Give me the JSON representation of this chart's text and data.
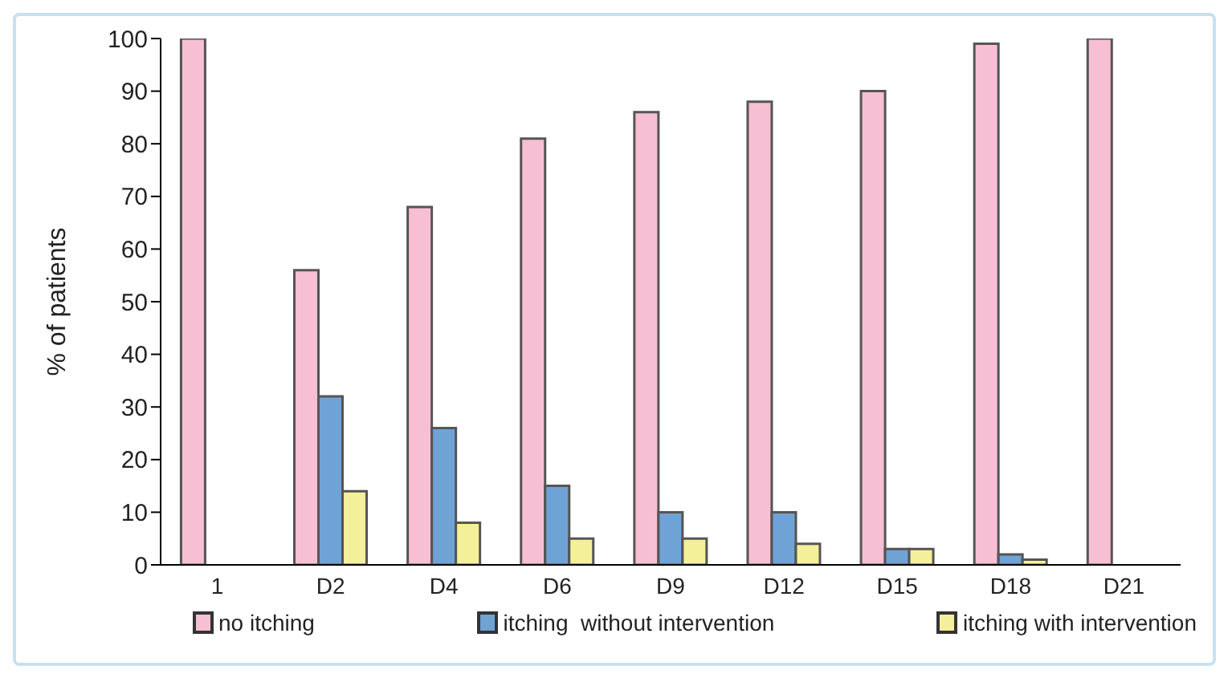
{
  "chart_data": {
    "type": "bar",
    "ylabel": "% of patients",
    "categories": [
      "1",
      "D2",
      "D4",
      "D6",
      "D9",
      "D12",
      "D15",
      "D18",
      "D21"
    ],
    "series": [
      {
        "name": "no itching",
        "color": "#f7bfd3",
        "values": [
          100,
          56,
          68,
          81,
          86,
          88,
          90,
          99,
          100
        ]
      },
      {
        "name": "itching  without intervention",
        "color": "#6fa3d6",
        "values": [
          0,
          32,
          26,
          15,
          10,
          10,
          3,
          2,
          0
        ]
      },
      {
        "name": "itching with intervention",
        "color": "#f4f09a",
        "values": [
          0,
          14,
          8,
          5,
          5,
          4,
          3,
          1,
          0
        ]
      }
    ],
    "ylim": [
      0,
      100
    ],
    "yticks": [
      0,
      10,
      20,
      30,
      40,
      50,
      60,
      70,
      80,
      90,
      100
    ],
    "grid": false,
    "legend": "bottom"
  }
}
